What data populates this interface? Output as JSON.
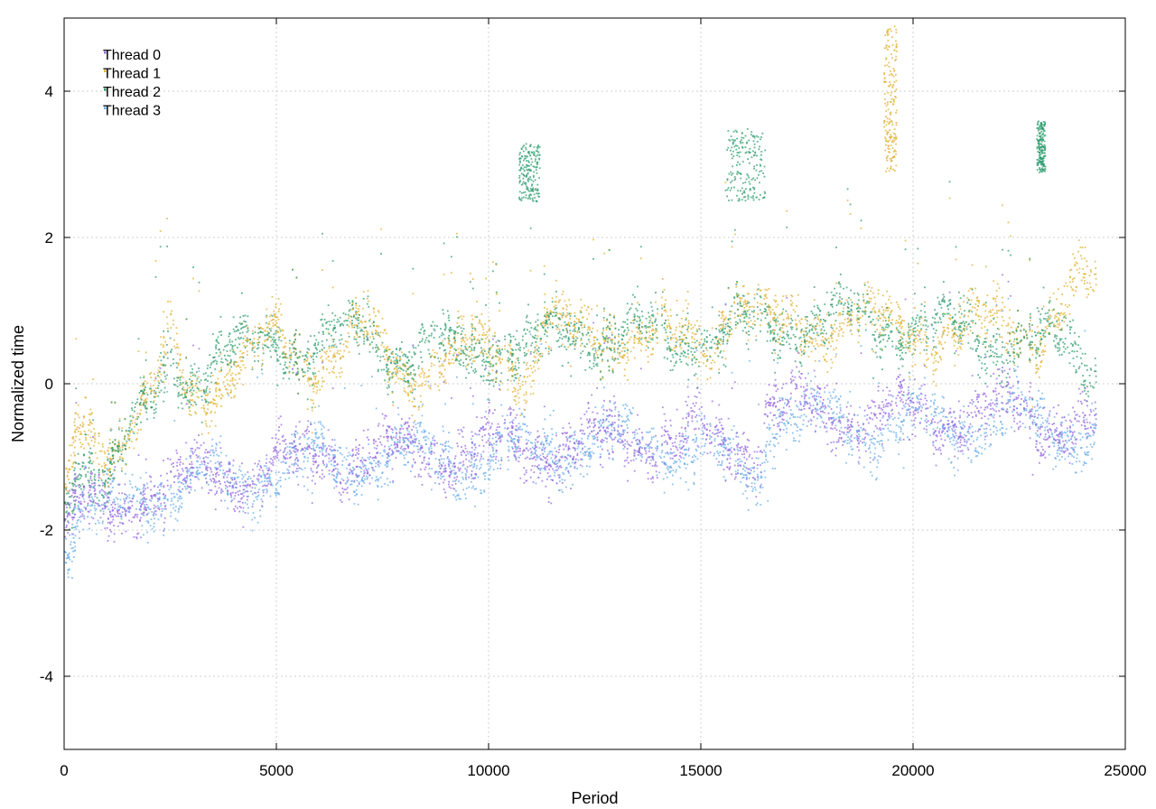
{
  "chart_data": {
    "type": "scatter",
    "title": "",
    "xlabel": "Period",
    "ylabel": "Normalized time",
    "xlim": [
      0,
      25000
    ],
    "ylim": [
      -5,
      5
    ],
    "x_ticks": [
      0,
      5000,
      10000,
      15000,
      20000,
      25000
    ],
    "y_ticks": [
      -4,
      -2,
      0,
      2,
      4
    ],
    "x_tick_labels": [
      "0",
      "5000",
      "10000",
      "15000",
      "20000",
      "25000"
    ],
    "y_tick_labels": [
      "-4",
      "-2",
      "0",
      "2",
      "4"
    ],
    "grid": true,
    "legend_position": "top-left",
    "x_extent": [
      0,
      24300
    ],
    "series": [
      {
        "name": "Thread 0",
        "color": "#9467e0",
        "trend": [
          [
            0,
            -2.0
          ],
          [
            300,
            -1.7
          ],
          [
            1000,
            -1.8
          ],
          [
            2000,
            -1.4
          ],
          [
            3000,
            -1.3
          ],
          [
            4000,
            -1.2
          ],
          [
            5000,
            -1.1
          ],
          [
            6000,
            -1.0
          ],
          [
            8000,
            -0.95
          ],
          [
            10000,
            -0.9
          ],
          [
            12000,
            -0.85
          ],
          [
            14000,
            -0.75
          ],
          [
            16400,
            -0.8
          ],
          [
            16500,
            -0.3
          ],
          [
            18000,
            -0.4
          ],
          [
            20000,
            -0.45
          ],
          [
            22000,
            -0.4
          ],
          [
            24300,
            -0.55
          ]
        ]
      },
      {
        "name": "Thread 1",
        "color": "#e0b030",
        "trend": [
          [
            0,
            -1.9
          ],
          [
            300,
            -0.6
          ],
          [
            1000,
            -0.8
          ],
          [
            2000,
            -0.3
          ],
          [
            2500,
            0.6
          ],
          [
            3000,
            -0.2
          ],
          [
            4000,
            0.3
          ],
          [
            5000,
            0.6
          ],
          [
            6000,
            0.3
          ],
          [
            7000,
            0.7
          ],
          [
            8000,
            0.2
          ],
          [
            9000,
            0.3
          ],
          [
            10000,
            0.5
          ],
          [
            11000,
            0.2
          ],
          [
            11300,
            0.9
          ],
          [
            12000,
            0.6
          ],
          [
            13000,
            0.7
          ],
          [
            14000,
            0.6
          ],
          [
            15300,
            0.5
          ],
          [
            15500,
            1.2
          ],
          [
            16300,
            1.0
          ],
          [
            16600,
            0.7
          ],
          [
            18000,
            0.9
          ],
          [
            19300,
            0.8
          ],
          [
            20000,
            0.8
          ],
          [
            21000,
            0.6
          ],
          [
            22000,
            0.9
          ],
          [
            23000,
            0.7
          ],
          [
            23500,
            0.9
          ],
          [
            24000,
            1.4
          ],
          [
            24300,
            1.4
          ]
        ],
        "excursions": [
          {
            "x_range": [
              19300,
              19600
            ],
            "y_range": [
              2.9,
              4.9
            ]
          }
        ]
      },
      {
        "name": "Thread 2",
        "color": "#2e9c6e",
        "trend": [
          [
            0,
            -1.8
          ],
          [
            300,
            -0.9
          ],
          [
            1000,
            -1.2
          ],
          [
            2000,
            -0.4
          ],
          [
            2500,
            0.5
          ],
          [
            3000,
            0.1
          ],
          [
            4000,
            0.4
          ],
          [
            5000,
            0.7
          ],
          [
            6000,
            0.4
          ],
          [
            7000,
            0.8
          ],
          [
            8000,
            0.4
          ],
          [
            9000,
            0.4
          ],
          [
            10000,
            0.6
          ],
          [
            11000,
            0.4
          ],
          [
            12000,
            0.8
          ],
          [
            13000,
            0.6
          ],
          [
            14000,
            0.6
          ],
          [
            15300,
            0.7
          ],
          [
            16500,
            0.8
          ],
          [
            18000,
            0.9
          ],
          [
            20000,
            0.8
          ],
          [
            22000,
            0.6
          ],
          [
            23500,
            0.5
          ],
          [
            24300,
            0.3
          ]
        ],
        "excursions": [
          {
            "x_range": [
              10700,
              11200
            ],
            "y_range": [
              2.5,
              3.3
            ]
          },
          {
            "x_range": [
              15600,
              16500
            ],
            "y_range": [
              2.5,
              3.5
            ]
          },
          {
            "x_range": [
              22900,
              23100
            ],
            "y_range": [
              2.9,
              3.6
            ]
          }
        ]
      },
      {
        "name": "Thread 3",
        "color": "#6aaee8",
        "trend": [
          [
            0,
            -2.2
          ],
          [
            300,
            -1.7
          ],
          [
            1000,
            -1.8
          ],
          [
            2000,
            -1.5
          ],
          [
            3000,
            -1.35
          ],
          [
            4000,
            -1.3
          ],
          [
            5000,
            -1.15
          ],
          [
            6000,
            -1.1
          ],
          [
            8000,
            -1.0
          ],
          [
            10000,
            -1.0
          ],
          [
            12000,
            -0.8
          ],
          [
            14000,
            -0.8
          ],
          [
            16400,
            -1.2
          ],
          [
            16600,
            -0.4
          ],
          [
            18000,
            -0.5
          ],
          [
            20000,
            -0.6
          ],
          [
            22000,
            -0.5
          ],
          [
            24300,
            -0.7
          ]
        ]
      }
    ]
  }
}
